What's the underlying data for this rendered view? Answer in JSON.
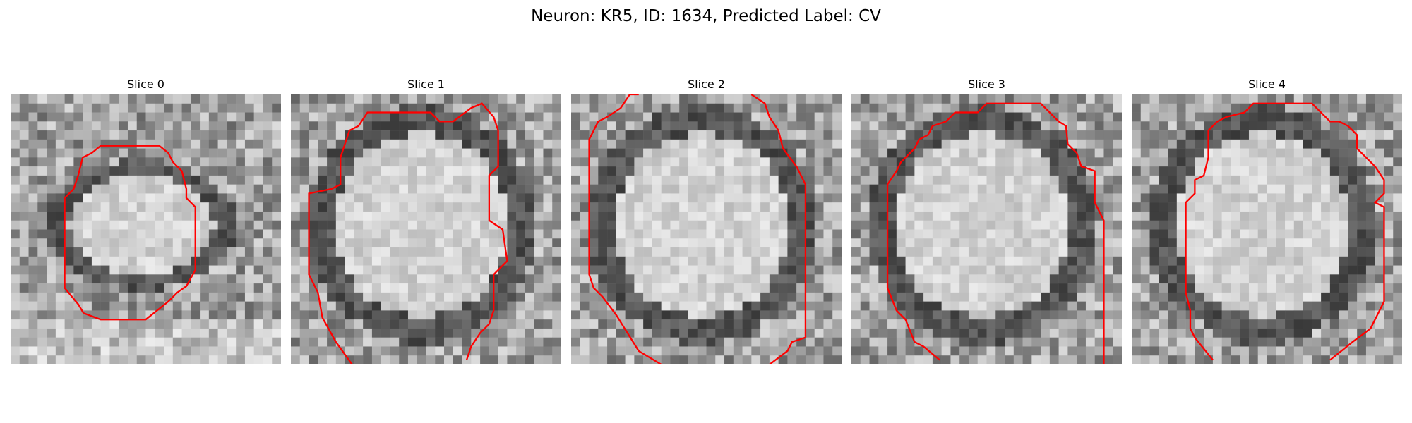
{
  "figure": {
    "title": "Neuron: KR5, ID: 1634, Predicted Label: CV"
  },
  "panels": [
    {
      "title": "Slice 0"
    },
    {
      "title": "Slice 1"
    },
    {
      "title": "Slice 2"
    },
    {
      "title": "Slice 3"
    },
    {
      "title": "Slice 4"
    }
  ],
  "colors": {
    "contour": "#ff0000",
    "image_colormap": "gray"
  }
}
